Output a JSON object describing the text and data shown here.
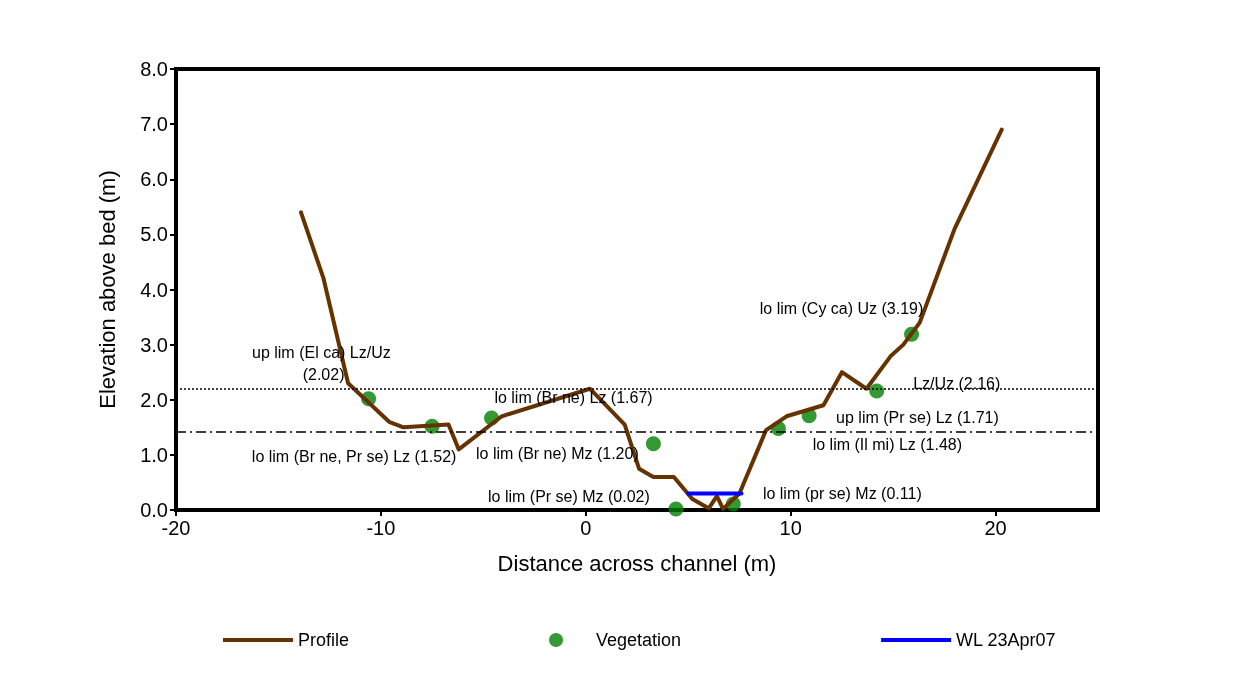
{
  "chart_data": {
    "type": "line",
    "xlabel": "Distance across channel (m)",
    "ylabel": "Elevation above bed (m)",
    "xlim": [
      -20,
      25
    ],
    "xticks": [
      -20,
      -10,
      0,
      10,
      20
    ],
    "ylim": [
      0,
      8
    ],
    "yticks": [
      {
        "value": 0,
        "label": "0.0"
      },
      {
        "value": 1,
        "label": "1.0"
      },
      {
        "value": 2,
        "label": "2.0"
      },
      {
        "value": 3,
        "label": "3.0"
      },
      {
        "value": 4,
        "label": "4.0"
      },
      {
        "value": 5,
        "label": "5.0"
      },
      {
        "value": 6,
        "label": "6.0"
      },
      {
        "value": 7,
        "label": "7.0"
      },
      {
        "value": 8,
        "label": "8.0"
      }
    ],
    "grid": false,
    "legend": "bottom",
    "series": [
      {
        "name": "Profile",
        "color": "#663300",
        "marker": "none",
        "line_style": "solid",
        "x": [
          -13.9,
          -12.8,
          -11.6,
          -9.6,
          -8.9,
          -6.7,
          -6.2,
          -4.1,
          0.2,
          1.9,
          2.6,
          3.3,
          4.3,
          5.2,
          6.0,
          6.4,
          6.7,
          7.5,
          8.8,
          9.8,
          11.6,
          12.5,
          13.7,
          14.9,
          15.5,
          16.3,
          18.0,
          20.3
        ],
        "values": [
          5.4,
          4.2,
          2.3,
          1.6,
          1.5,
          1.55,
          1.1,
          1.7,
          2.2,
          1.55,
          0.75,
          0.6,
          0.6,
          0.2,
          0.03,
          0.25,
          0.02,
          0.3,
          1.45,
          1.7,
          1.9,
          2.5,
          2.2,
          2.8,
          3.0,
          3.4,
          5.1,
          6.9
        ]
      },
      {
        "name": "Vegetation",
        "type": "scatter",
        "color": "#008000",
        "marker": "circle",
        "x": [
          -10.6,
          -7.5,
          -4.6,
          3.3,
          4.4,
          7.2,
          9.4,
          10.9,
          14.2,
          15.9
        ],
        "values": [
          2.02,
          1.52,
          1.67,
          1.2,
          0.02,
          0.11,
          1.48,
          1.71,
          2.16,
          3.19
        ]
      },
      {
        "name": "WL 23Apr07",
        "color": "#0000ff",
        "marker": "none",
        "line_style": "solid",
        "x": [
          5.0,
          7.6
        ],
        "values": [
          0.3,
          0.3
        ]
      }
    ],
    "ref_lines": [
      {
        "axis": "y",
        "value": 2.2,
        "color": "#000000",
        "line_style": "dotted"
      },
      {
        "axis": "y",
        "value": 1.42,
        "color": "#000000",
        "line_style": "dashed"
      }
    ],
    "annotations": [
      {
        "text": "up lim (El ca) Lz/Uz (2.02)",
        "x": -10.6,
        "y": 2.02
      },
      {
        "text": "lo lim (Br ne, Pr se) Lz (1.52)",
        "x": -7.5,
        "y": 1.52
      },
      {
        "text": "lo lim (Br ne) Lz (1.67)",
        "x": -4.6,
        "y": 1.67
      },
      {
        "text": "lo lim (Br ne) Mz (1.20)",
        "x": 3.3,
        "y": 1.2
      },
      {
        "text": "lo lim (Pr se) Mz (0.02)",
        "x": 4.4,
        "y": 0.02
      },
      {
        "text": "lo lim (pr se) Mz (0.11)",
        "x": 7.2,
        "y": 0.11
      },
      {
        "text": "lo lim (Il mi) Lz (1.48)",
        "x": 9.4,
        "y": 1.48
      },
      {
        "text": "up lim (Pr se) Lz (1.71)",
        "x": 10.9,
        "y": 1.71
      },
      {
        "text": "Lz/Uz (2.16)",
        "x": 14.2,
        "y": 2.16
      },
      {
        "text": "lo lim (Cy ca) Uz (3.19)",
        "x": 15.9,
        "y": 3.19
      }
    ]
  }
}
